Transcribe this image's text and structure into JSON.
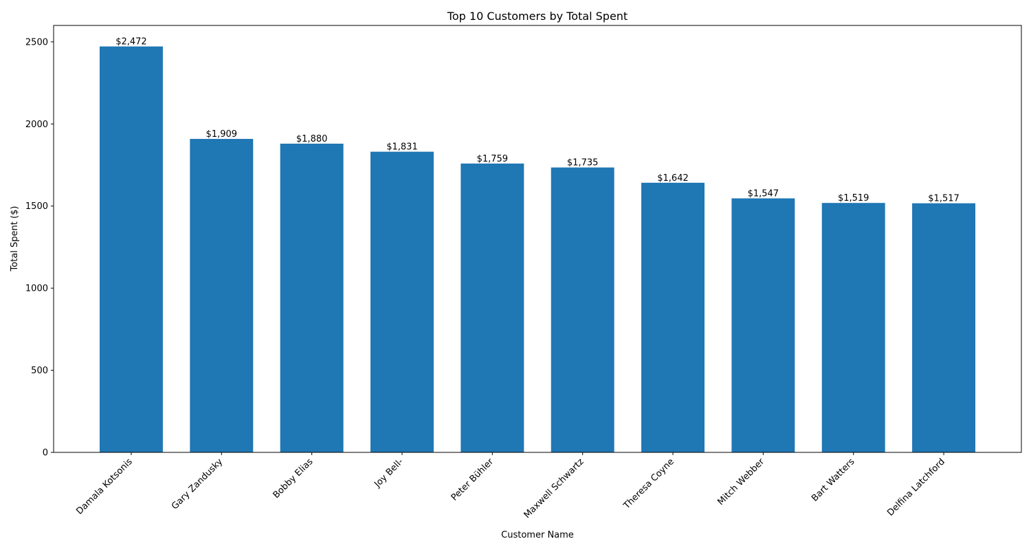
{
  "chart_data": {
    "type": "bar",
    "title": "Top 10 Customers by Total Spent",
    "xlabel": "Customer Name",
    "ylabel": "Total Spent ($)",
    "categories": [
      "Damala Kotsonis",
      "Gary Zandusky",
      "Bobby Elias",
      "Joy Bell-",
      "Peter Bühler",
      "Maxwell Schwartz",
      "Theresa Coyne",
      "Mitch Webber",
      "Bart Watters",
      "Delfina Latchford"
    ],
    "values": [
      2472,
      1909,
      1880,
      1831,
      1759,
      1735,
      1642,
      1547,
      1519,
      1517
    ],
    "data_labels": [
      "$2,472",
      "$1,909",
      "$1,880",
      "$1,831",
      "$1,759",
      "$1,735",
      "$1,642",
      "$1,547",
      "$1,519",
      "$1,517"
    ],
    "ylim": [
      0,
      2600
    ],
    "yticks": [
      0,
      500,
      1000,
      1500,
      2000,
      2500
    ],
    "bar_color": "#1f77b4",
    "grid": false,
    "legend": "none"
  }
}
